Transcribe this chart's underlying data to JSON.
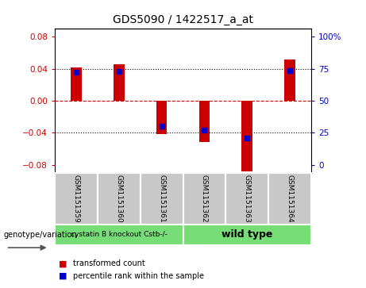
{
  "title": "GDS5090 / 1422517_a_at",
  "categories": [
    "GSM1151359",
    "GSM1151360",
    "GSM1151361",
    "GSM1151362",
    "GSM1151363",
    "GSM1151364"
  ],
  "bar_values": [
    0.042,
    0.046,
    -0.042,
    -0.052,
    -0.088,
    0.052
  ],
  "dot_values": [
    0.036,
    0.037,
    -0.032,
    -0.037,
    -0.047,
    0.038
  ],
  "ylim": [
    -0.09,
    0.09
  ],
  "yticks_left": [
    -0.08,
    -0.04,
    0.0,
    0.04,
    0.08
  ],
  "yticks_right_vals": [
    -0.08,
    -0.04,
    0.0,
    0.04,
    0.08
  ],
  "yticks_right_labels": [
    "0",
    "25",
    "50",
    "75",
    "100%"
  ],
  "bar_color": "#cc0000",
  "dot_color": "#0000cc",
  "group1_label": "cystatin B knockout Cstb-/-",
  "group2_label": "wild type",
  "tick_bg": "#c8c8c8",
  "group_bg": "#77dd77",
  "genotype_label": "genotype/variation",
  "legend_bar_label": "transformed count",
  "legend_dot_label": "percentile rank within the sample",
  "bar_width": 0.25
}
